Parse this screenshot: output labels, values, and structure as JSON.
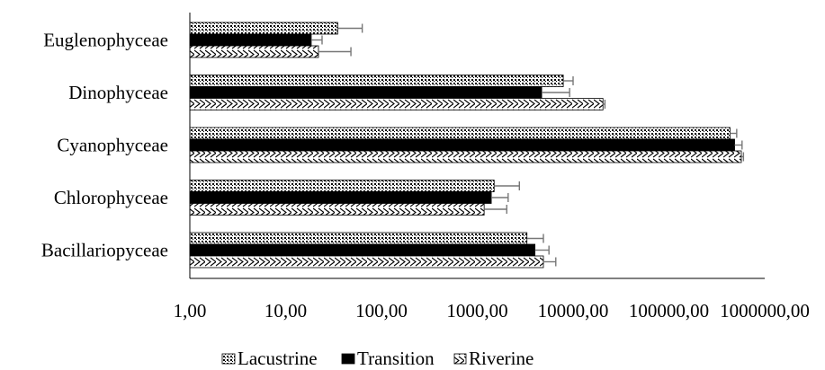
{
  "chart_data": {
    "type": "bar",
    "orientation": "horizontal",
    "x_scale": "log",
    "xlim": [
      1,
      1000000
    ],
    "x_ticks": [
      1,
      10,
      100,
      1000,
      10000,
      100000,
      1000000
    ],
    "x_tick_labels": [
      "1,00",
      "10,00",
      "100,00",
      "1000,00",
      "10000,00",
      "100000,00",
      "1000000,00"
    ],
    "grid": false,
    "legend_position": "bottom",
    "title": "",
    "xlabel": "",
    "ylabel": "",
    "categories": [
      "Euglenophyceae",
      "Dinophyceae",
      "Cyanophyceae",
      "Chlorophyceae",
      "Bacillariopyceae"
    ],
    "series": [
      {
        "name": "Lacustrine",
        "pattern": "dots",
        "values": [
          35,
          7900,
          435000,
          1500,
          3300
        ],
        "errors": [
          28,
          2100,
          75000,
          1250,
          1600
        ]
      },
      {
        "name": "Transition",
        "pattern": "solid",
        "values": [
          18.5,
          4700,
          485000,
          1400,
          4000
        ],
        "errors": [
          5.5,
          4500,
          95000,
          700,
          1600
        ]
      },
      {
        "name": "Riverine",
        "pattern": "waves",
        "values": [
          22,
          20500,
          570000,
          1180,
          4900
        ],
        "errors": [
          26,
          1000,
          30000,
          850,
          1700
        ]
      }
    ],
    "colors": {
      "bar_fill": "#000000",
      "bar_edge": "#000000",
      "error_bar": "#777777",
      "axis": "#000000"
    }
  }
}
